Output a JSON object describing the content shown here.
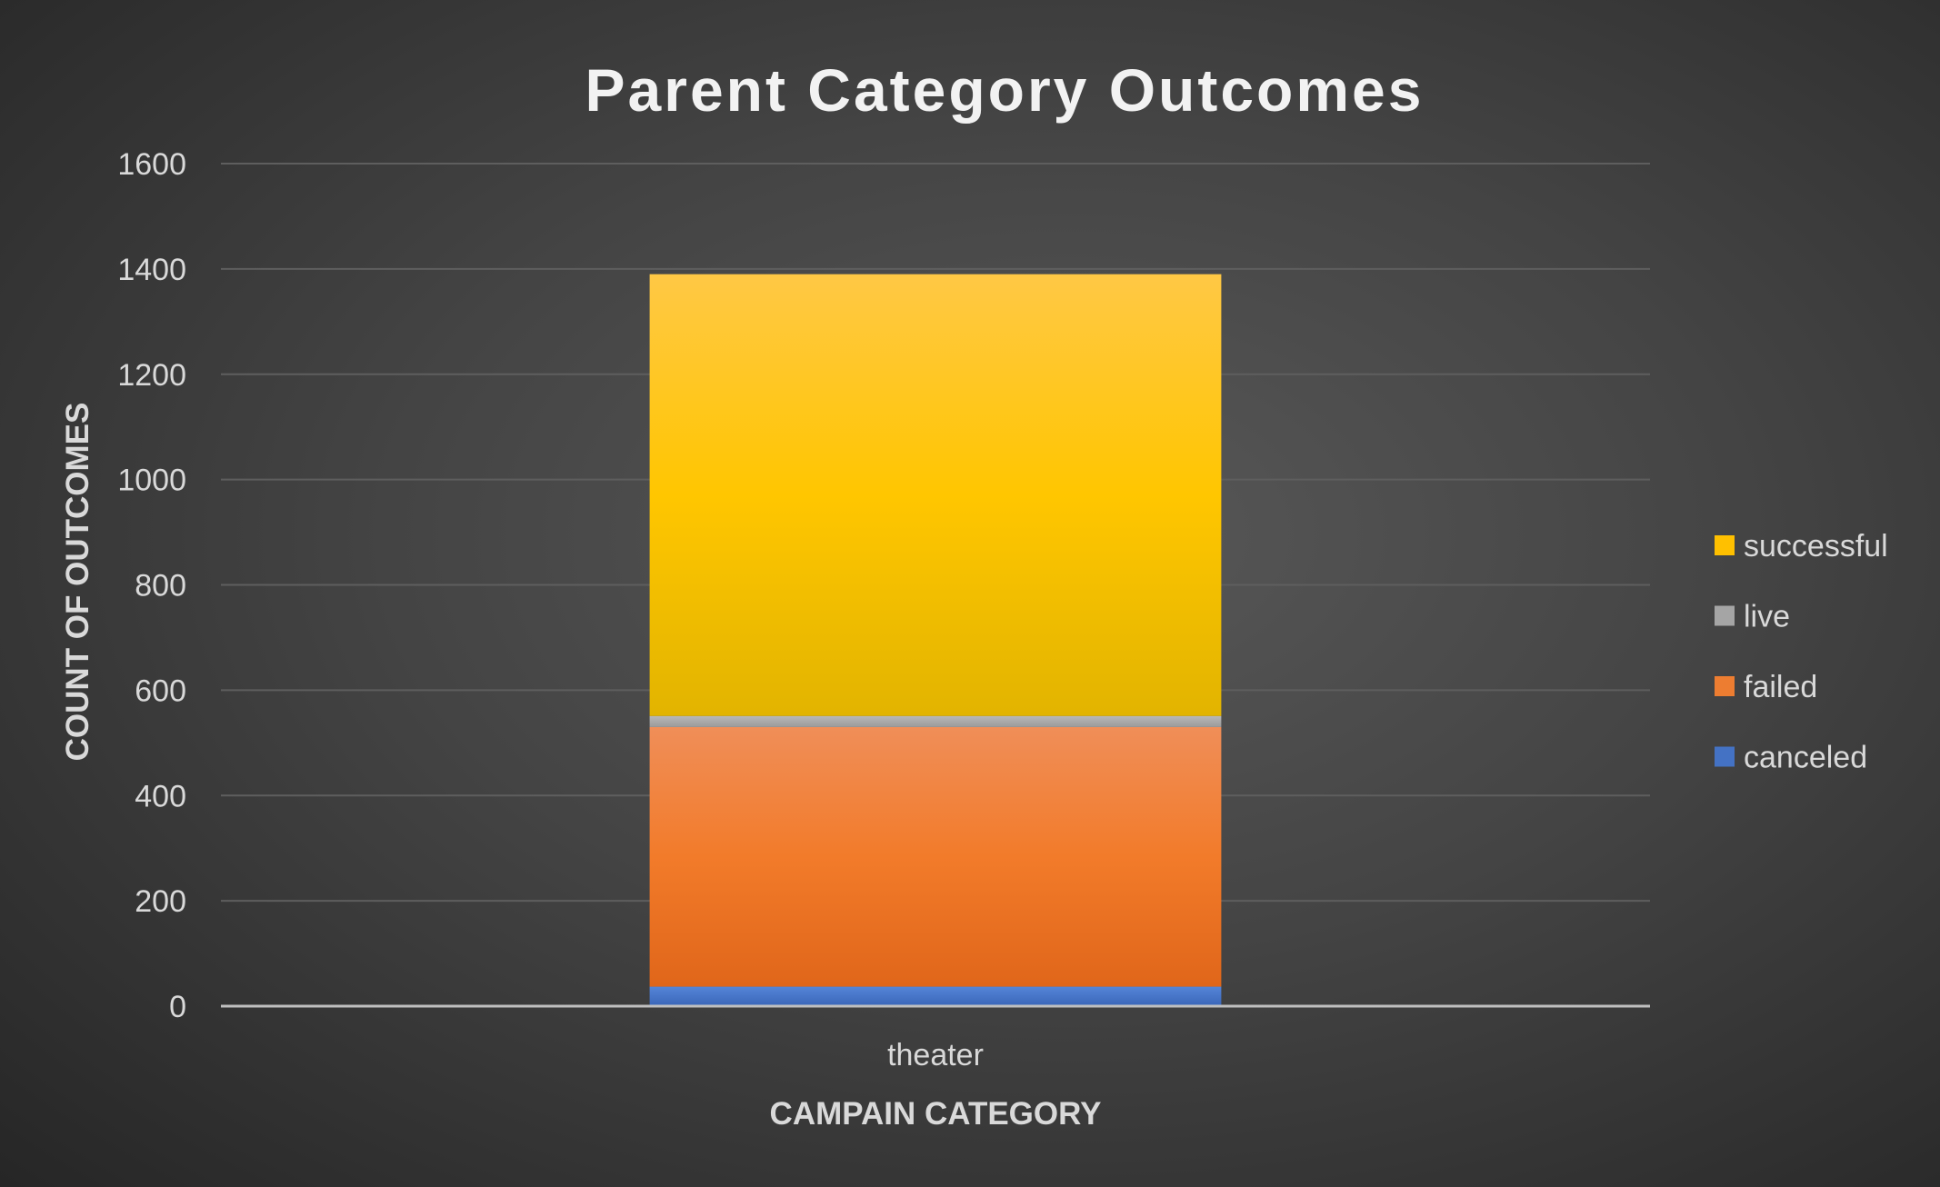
{
  "chart_data": {
    "type": "bar",
    "stacked": true,
    "title": "Parent Category Outcomes",
    "xlabel": "CAMPAIN CATEGORY",
    "ylabel": "COUNT OF OUTCOMES",
    "categories": [
      "theater"
    ],
    "ylim": [
      0,
      1600
    ],
    "yticks": [
      0,
      200,
      400,
      600,
      800,
      1000,
      1200,
      1400,
      1600
    ],
    "grid": true,
    "legend_position": "right",
    "series": [
      {
        "name": "canceled",
        "values": [
          37
        ],
        "color": "#4472C4"
      },
      {
        "name": "failed",
        "values": [
          493
        ],
        "color": "#ED7D31"
      },
      {
        "name": "live",
        "values": [
          21
        ],
        "color": "#A5A5A5"
      },
      {
        "name": "successful",
        "values": [
          839
        ],
        "color": "#FFC000"
      }
    ]
  }
}
